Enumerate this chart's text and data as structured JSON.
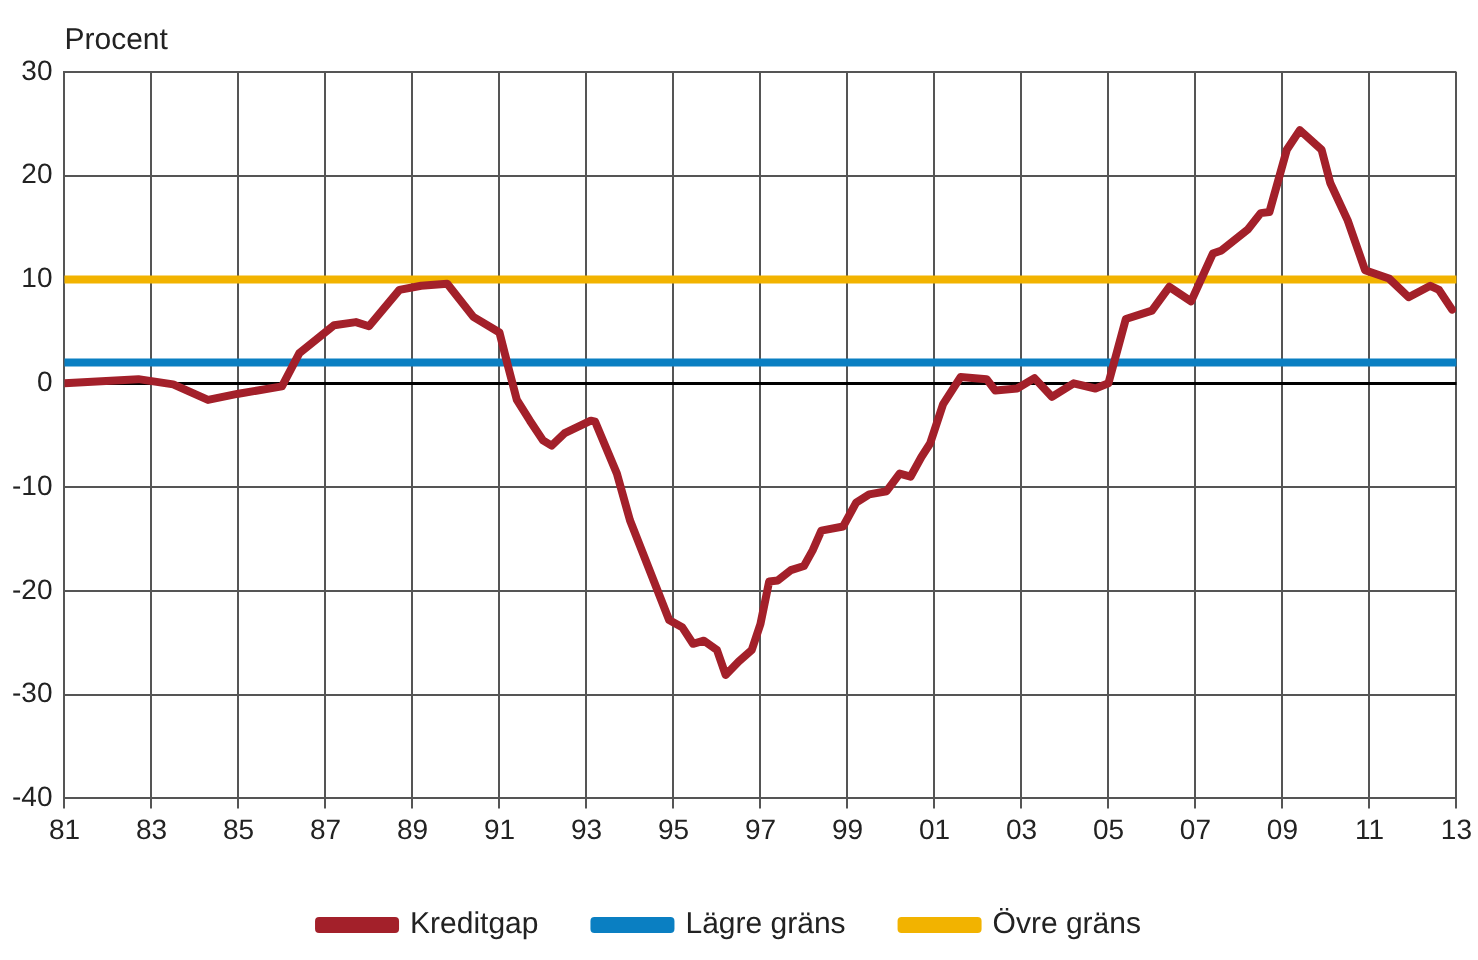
{
  "chart_data": {
    "type": "line",
    "ylabel": "Procent",
    "xlim": [
      1981,
      2013
    ],
    "ylim": [
      -40,
      30
    ],
    "xticks": [
      {
        "value": 1981,
        "label": "81"
      },
      {
        "value": 1983,
        "label": "83"
      },
      {
        "value": 1985,
        "label": "85"
      },
      {
        "value": 1987,
        "label": "87"
      },
      {
        "value": 1989,
        "label": "89"
      },
      {
        "value": 1991,
        "label": "91"
      },
      {
        "value": 1993,
        "label": "93"
      },
      {
        "value": 1995,
        "label": "95"
      },
      {
        "value": 1997,
        "label": "97"
      },
      {
        "value": 1999,
        "label": "99"
      },
      {
        "value": 2001,
        "label": "01"
      },
      {
        "value": 2003,
        "label": "03"
      },
      {
        "value": 2005,
        "label": "05"
      },
      {
        "value": 2007,
        "label": "07"
      },
      {
        "value": 2009,
        "label": "09"
      },
      {
        "value": 2011,
        "label": "11"
      },
      {
        "value": 2013,
        "label": "13"
      }
    ],
    "yticks": [
      -40,
      -30,
      -20,
      -10,
      0,
      10,
      20,
      30
    ],
    "grid": true,
    "legend": "bottom",
    "marker": "none",
    "line_style": "solid",
    "series": [
      {
        "name": "Kreditgap",
        "color": "#a3202a",
        "x": [
          1981,
          1982.7,
          1983.5,
          1984.3,
          1985,
          1986,
          1986.4,
          1987.2,
          1987.7,
          1988,
          1988.7,
          1989.2,
          1989.8,
          1990.4,
          1991,
          1991.2,
          1991.4,
          1991.7,
          1992,
          1992.2,
          1992.5,
          1993.1,
          1993.2,
          1993.7,
          1994,
          1994.3,
          1994.9,
          1995.2,
          1995.45,
          1995.7,
          1996,
          1996.2,
          1996.5,
          1996.8,
          1997,
          1997.2,
          1997.4,
          1997.7,
          1998,
          1998.2,
          1998.4,
          1998.9,
          1999.2,
          1999.5,
          1999.9,
          2000.2,
          2000.45,
          2000.7,
          2000.9,
          2001.2,
          2001.6,
          2002.2,
          2002.4,
          2002.9,
          2003.3,
          2003.7,
          2004.2,
          2004.7,
          2005,
          2005.4,
          2006,
          2006.4,
          2006.9,
          2007.4,
          2007.6,
          2008.2,
          2008.5,
          2008.7,
          2009.1,
          2009.4,
          2009.9,
          2010.1,
          2010.5,
          2010.9,
          2011.45,
          2011.9,
          2012.4,
          2012.6,
          2012.9
        ],
        "values": [
          0,
          0.4,
          -0.1,
          -1.6,
          -1,
          -0.3,
          2.9,
          5.6,
          5.9,
          5.5,
          9,
          9.4,
          9.6,
          6.4,
          4.9,
          1.6,
          -1.6,
          -3.6,
          -5.5,
          -6,
          -4.8,
          -3.6,
          -3.7,
          -8.7,
          -13.2,
          -16.4,
          -22.8,
          -23.5,
          -25.1,
          -24.8,
          -25.7,
          -28.1,
          -26.8,
          -25.7,
          -23.2,
          -19.1,
          -19,
          -18,
          -17.6,
          -16.1,
          -14.2,
          -13.8,
          -11.5,
          -10.7,
          -10.4,
          -8.7,
          -9,
          -7.1,
          -5.8,
          -2,
          0.6,
          0.4,
          -0.7,
          -0.5,
          0.5,
          -1.3,
          0,
          -0.5,
          0,
          6.2,
          7,
          9.3,
          7.9,
          12.5,
          12.8,
          14.8,
          16.4,
          16.5,
          22.5,
          24.4,
          22.5,
          19.3,
          15.7,
          10.9,
          10.1,
          8.3,
          9.4,
          9,
          7.1
        ]
      },
      {
        "name": "Lägre gräns",
        "color": "#0a7fc2",
        "x": [
          1981,
          2013
        ],
        "values": [
          2,
          2
        ]
      },
      {
        "name": "Övre gräns",
        "color": "#f2b300",
        "x": [
          1981,
          2013
        ],
        "values": [
          10,
          10
        ]
      }
    ]
  }
}
